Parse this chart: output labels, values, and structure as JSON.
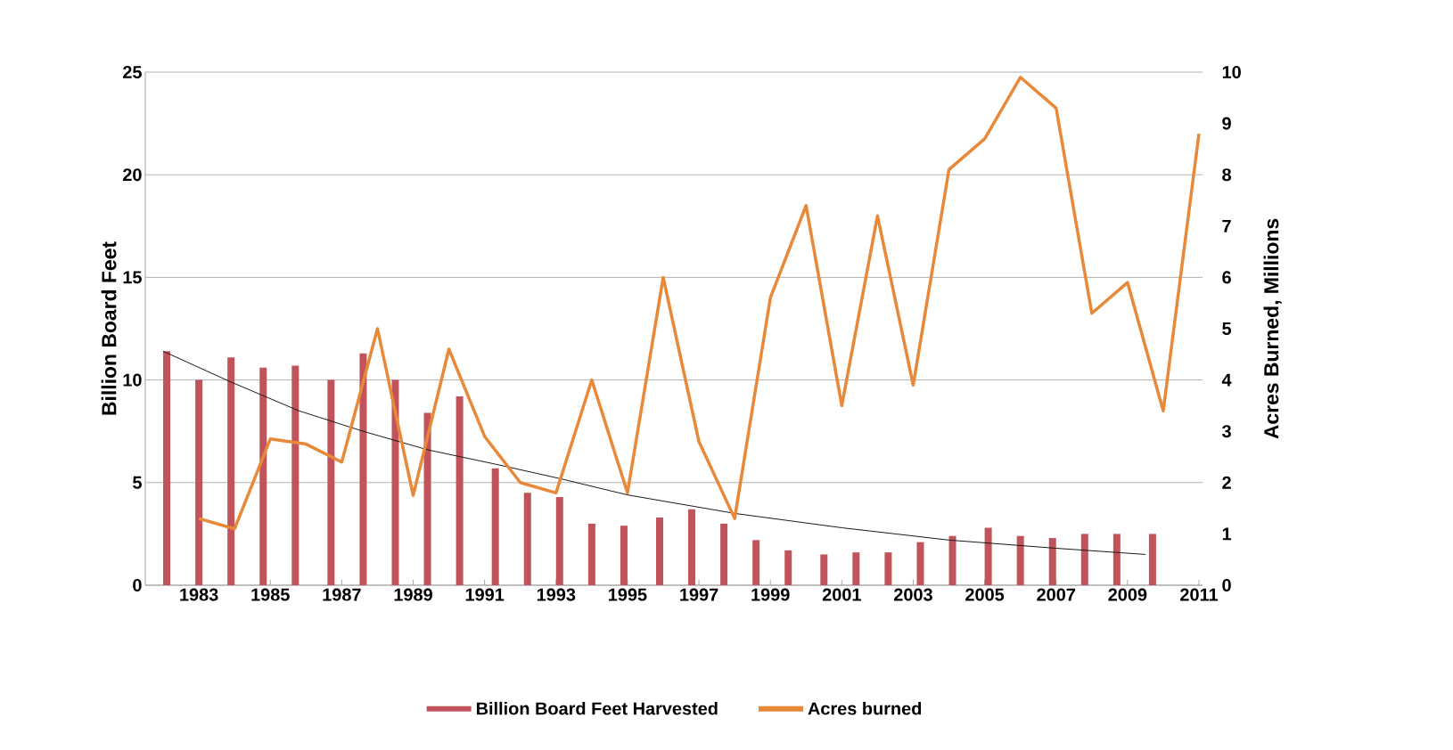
{
  "chart_data": {
    "type": "bar",
    "ylabel": "Billion Board Feet",
    "y2label": "Acres Burned, Millions",
    "xlim": [
      1981.5,
      2011.1
    ],
    "xticks": [
      1983,
      1985,
      1987,
      1989,
      1991,
      1993,
      1995,
      1997,
      1999,
      2001,
      2003,
      2005,
      2007,
      2009,
      2011
    ],
    "ylim": [
      0,
      25
    ],
    "yticks": [
      0,
      5,
      10,
      15,
      20,
      25
    ],
    "y2lim": [
      0,
      10
    ],
    "y2ticks": [
      0,
      1,
      2,
      3,
      4,
      5,
      6,
      7,
      8,
      9,
      10
    ],
    "grid": "y",
    "legend": "bottom",
    "marker": "none",
    "series": [
      {
        "name": "Billion Board Feet Harvested",
        "color": "#c0545a",
        "x": [
          1982.1,
          1983.0,
          1983.9,
          1984.8,
          1985.7,
          1986.7,
          1987.6,
          1988.5,
          1989.4,
          1990.3,
          1991.3,
          1992.2,
          1993.1,
          1994.0,
          1994.9,
          1995.9,
          1996.8,
          1997.7,
          1998.6,
          1999.5,
          2000.5,
          2001.4,
          2002.3,
          2003.2,
          2004.1,
          2005.1,
          2006.0,
          2006.9,
          2007.8,
          2008.7,
          2009.7
        ],
        "values": [
          11.4,
          10.0,
          11.1,
          10.6,
          10.7,
          10.0,
          11.3,
          10.0,
          8.4,
          9.2,
          5.7,
          4.5,
          4.3,
          3.0,
          2.9,
          3.3,
          3.7,
          3.0,
          2.2,
          1.7,
          1.5,
          1.6,
          1.6,
          2.1,
          2.4,
          2.8,
          2.4,
          2.3,
          2.5,
          2.5,
          2.5
        ]
      },
      {
        "name": "Acres burned",
        "type": "line",
        "axis": "y2",
        "color": "#e8893a",
        "x": [
          1983,
          1984,
          1985,
          1986,
          1987,
          1988,
          1989,
          1990,
          1991,
          1992,
          1993,
          1994,
          1995,
          1996,
          1997,
          1998,
          1999,
          2000,
          2001,
          2002,
          2003,
          2004,
          2005,
          2006,
          2007,
          2008,
          2009,
          2010,
          2011
        ],
        "values": [
          1.3,
          1.1,
          2.85,
          2.75,
          2.4,
          5.0,
          1.75,
          4.6,
          2.9,
          2.0,
          1.8,
          4.0,
          1.8,
          6.0,
          2.8,
          1.3,
          5.6,
          7.4,
          3.5,
          7.2,
          3.9,
          8.1,
          8.7,
          9.9,
          9.3,
          5.3,
          5.9,
          3.4,
          8.8
        ]
      },
      {
        "type": "line",
        "color": "#1a1a1a",
        "x": [
          1982.0,
          1983.9,
          1985.8,
          1987.6,
          1989.4,
          1991.3,
          1993.1,
          1995.0,
          1998.0,
          2001.0,
          2004.0,
          2007.0,
          2009.5
        ],
        "values": [
          11.4,
          9.9,
          8.5,
          7.5,
          6.6,
          5.9,
          5.2,
          4.4,
          3.5,
          2.8,
          2.2,
          1.8,
          1.5
        ]
      }
    ]
  }
}
